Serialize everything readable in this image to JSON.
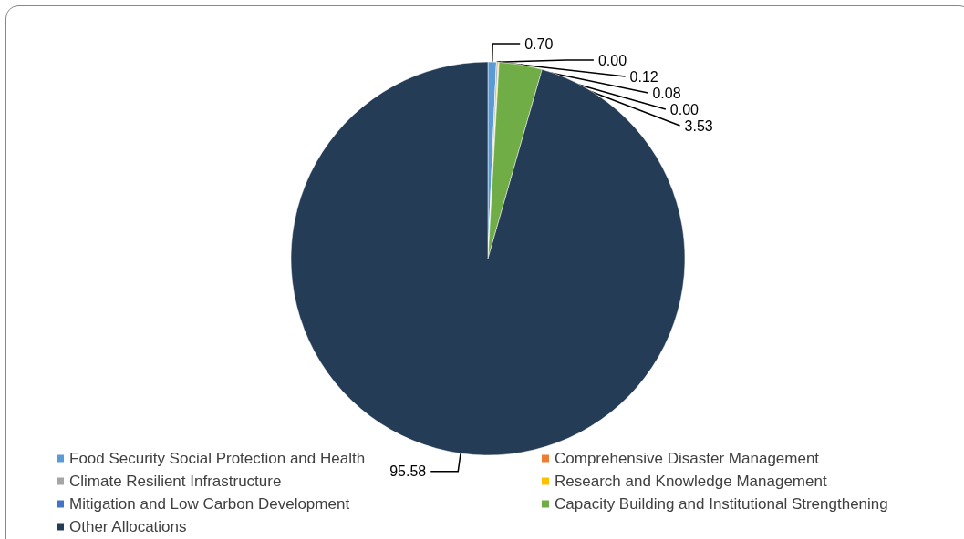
{
  "chart_data": {
    "type": "pie",
    "categories": [
      "Food Security Social Protection and Health",
      "Comprehensive Disaster Management",
      "Climate Resilient Infrastructure",
      "Research and Knowledge Management",
      "Mitigation and Low Carbon Development",
      "Capacity Building and Institutional Strengthening",
      "Other Allocations"
    ],
    "values": [
      0.7,
      0.0,
      0.12,
      0.08,
      0.0,
      3.53,
      95.58
    ],
    "colors": [
      "#5b9bd5",
      "#ed7d31",
      "#a5a5a5",
      "#ffc000",
      "#4472c4",
      "#70ad47",
      "#243c55"
    ],
    "value_labels": [
      "0.70",
      "0.00",
      "0.12",
      "0.08",
      "0.00",
      "3.53",
      "95.58"
    ],
    "legend": "bottom"
  }
}
